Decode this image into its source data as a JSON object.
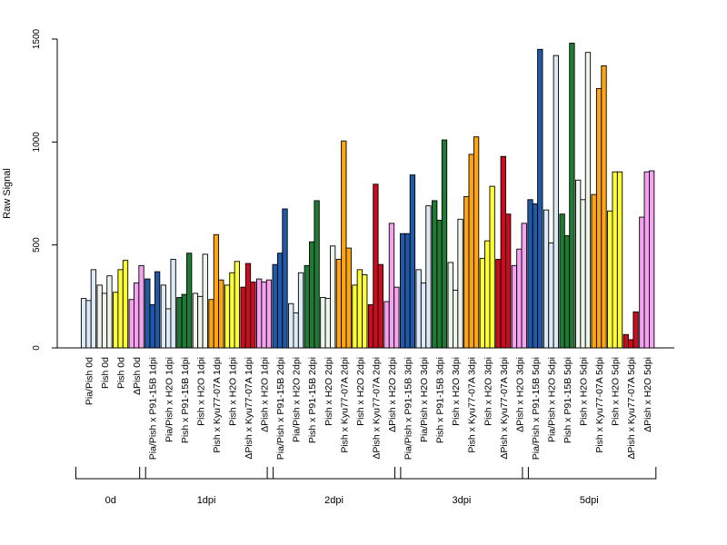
{
  "chart_data": {
    "type": "bar",
    "ylabel": "Raw Signal",
    "xlabel": "",
    "ylim": [
      0,
      1500
    ],
    "yticks": [
      0,
      500,
      1000,
      1500
    ],
    "grid": false,
    "bars_per_category": 3,
    "categories": [
      {
        "label": "Pia/Pish 0d",
        "color": "#dce9f7",
        "values": [
          240,
          230,
          380
        ]
      },
      {
        "label": "Pish 0d",
        "color": "#eef5ea",
        "values": [
          305,
          265,
          350
        ]
      },
      {
        "label": "Pish 0d",
        "color": "#ffff33",
        "values": [
          270,
          380,
          425
        ]
      },
      {
        "label": "ΔPish 0d",
        "color": "#f5a3f0",
        "values": [
          235,
          315,
          400
        ]
      },
      {
        "label": "Pia/Pish x P91-15B 1dpi",
        "color": "#2059a8",
        "values": [
          335,
          210,
          370
        ]
      },
      {
        "label": "Pia/Pish x H2O 1dpi",
        "color": "#dce9f7",
        "values": [
          305,
          190,
          430
        ]
      },
      {
        "label": "Pish x P91-15B 1dpi",
        "color": "#1f7a34",
        "values": [
          245,
          260,
          460
        ]
      },
      {
        "label": "Pish x H2O 1dpi",
        "color": "#eef5ea",
        "values": [
          265,
          250,
          455
        ]
      },
      {
        "label": "Pish x Kyu77-07A 1dpi",
        "color": "#ffa514",
        "values": [
          235,
          550,
          330
        ]
      },
      {
        "label": "Pish x H2O 1dpi",
        "color": "#ffff33",
        "values": [
          305,
          365,
          420
        ]
      },
      {
        "label": "ΔPish x Kyu77-07A 1dpi",
        "color": "#cc0c1e",
        "values": [
          295,
          410,
          320
        ]
      },
      {
        "label": "ΔPish x H2O 1dpi",
        "color": "#f5a3f0",
        "values": [
          335,
          320,
          330
        ]
      },
      {
        "label": "Pia/Pish x P91-15B 2dpi",
        "color": "#2059a8",
        "values": [
          405,
          460,
          675
        ]
      },
      {
        "label": "Pia/Pish x H2O 2dpi",
        "color": "#dce9f7",
        "values": [
          215,
          170,
          365
        ]
      },
      {
        "label": "Pish x P91-15B 2dpi",
        "color": "#1f7a34",
        "values": [
          400,
          515,
          715
        ]
      },
      {
        "label": "Pish x H2O 2dpi",
        "color": "#eef5ea",
        "values": [
          245,
          240,
          495
        ]
      },
      {
        "label": "Pish x Kyu77-07A 2dpi",
        "color": "#ffa514",
        "values": [
          430,
          1005,
          485
        ]
      },
      {
        "label": "Pish x H2O 2dpi",
        "color": "#ffff33",
        "values": [
          305,
          380,
          355
        ]
      },
      {
        "label": "ΔPish x Kyu77-07A 2dpi",
        "color": "#cc0c1e",
        "values": [
          210,
          795,
          405
        ]
      },
      {
        "label": "ΔPish x H2O 2dpi",
        "color": "#f5a3f0",
        "values": [
          225,
          605,
          295
        ]
      },
      {
        "label": "Pia/Pish x P91-15B 3dpi",
        "color": "#2059a8",
        "values": [
          555,
          555,
          840
        ]
      },
      {
        "label": "Pia/Pish x H2O 3dpi",
        "color": "#dce9f7",
        "values": [
          380,
          315,
          690
        ]
      },
      {
        "label": "Pish x P91-15B 3dpi",
        "color": "#1f7a34",
        "values": [
          715,
          620,
          1010
        ]
      },
      {
        "label": "Pish x H2O 3dpi",
        "color": "#eef5ea",
        "values": [
          415,
          280,
          625
        ]
      },
      {
        "label": "Pish x Kyu77-07A 3dpi",
        "color": "#ffa514",
        "values": [
          735,
          940,
          1025
        ]
      },
      {
        "label": "Pish x H2O 3dpi",
        "color": "#ffff33",
        "values": [
          435,
          520,
          785
        ]
      },
      {
        "label": "ΔPish x Kyu77-07A 3dpi",
        "color": "#cc0c1e",
        "values": [
          430,
          930,
          650
        ]
      },
      {
        "label": "ΔPish x H2O 3dpi",
        "color": "#f5a3f0",
        "values": [
          400,
          480,
          605
        ]
      },
      {
        "label": "Pia/Pish x P91-15B 5dpi",
        "color": "#2059a8",
        "values": [
          720,
          700,
          1450
        ]
      },
      {
        "label": "Pia/Pish x H2O 5dpi",
        "color": "#dce9f7",
        "values": [
          670,
          510,
          1420
        ]
      },
      {
        "label": "Pish x P91-15B 5dpi",
        "color": "#1f7a34",
        "values": [
          650,
          545,
          1480
        ]
      },
      {
        "label": "Pish x H2O 5dpi",
        "color": "#eef5ea",
        "values": [
          815,
          720,
          1435
        ]
      },
      {
        "label": "Pish x Kyu77-07A 5dpi",
        "color": "#ffa514",
        "values": [
          745,
          1260,
          1370
        ]
      },
      {
        "label": "Pish x H2O 5dpi",
        "color": "#ffff33",
        "values": [
          665,
          855,
          855
        ]
      },
      {
        "label": "ΔPish x Kyu77-07A 5dpi",
        "color": "#cc0c1e",
        "values": [
          65,
          40,
          175
        ]
      },
      {
        "label": "ΔPish x H2O 5dpi",
        "color": "#f5a3f0",
        "values": [
          635,
          855,
          860
        ]
      }
    ],
    "groups": [
      {
        "label": "0d",
        "count": 4
      },
      {
        "label": "1dpi",
        "count": 8
      },
      {
        "label": "2dpi",
        "count": 8
      },
      {
        "label": "3dpi",
        "count": 8
      },
      {
        "label": "5dpi",
        "count": 8
      }
    ]
  }
}
